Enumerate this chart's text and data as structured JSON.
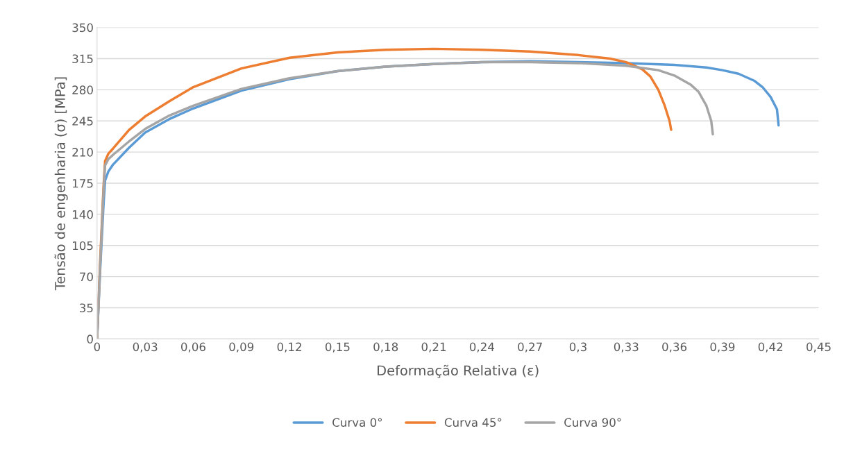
{
  "chart_data": {
    "type": "line",
    "xlabel": "Deformação Relativa (ε)",
    "ylabel": "Tensão de engenharia (σ) [MPa]",
    "xlim": [
      0,
      0.45
    ],
    "xticks": [
      0,
      {
        "value": 0.03,
        "label": "0,03"
      },
      {
        "value": 0.06,
        "label": "0,06"
      },
      {
        "value": 0.09,
        "label": "0,09"
      },
      {
        "value": 0.12,
        "label": "0,12"
      },
      {
        "value": 0.15,
        "label": "0,15"
      },
      {
        "value": 0.18,
        "label": "0,18"
      },
      {
        "value": 0.21,
        "label": "0,21"
      },
      {
        "value": 0.24,
        "label": "0,24"
      },
      {
        "value": 0.27,
        "label": "0,27"
      },
      {
        "value": 0.3,
        "label": "0,3"
      },
      {
        "value": 0.33,
        "label": "0,33"
      },
      {
        "value": 0.36,
        "label": "0,36"
      },
      {
        "value": 0.39,
        "label": "0,39"
      },
      {
        "value": 0.42,
        "label": "0,42"
      },
      {
        "value": 0.45,
        "label": "0,45"
      }
    ],
    "ylim": [
      0,
      350
    ],
    "yticks": [
      0,
      35,
      70,
      105,
      140,
      175,
      210,
      245,
      280,
      315,
      350
    ],
    "grid": "y",
    "legend": "bottom",
    "marker": "none",
    "line_style": "solid",
    "series": [
      {
        "name": "Curva 0°",
        "color": "#5b9bd5",
        "x": [
          0,
          0.002,
          0.004,
          0.005,
          0.007,
          0.01,
          0.02,
          0.03,
          0.045,
          0.06,
          0.09,
          0.12,
          0.15,
          0.18,
          0.21,
          0.24,
          0.27,
          0.3,
          0.33,
          0.36,
          0.38,
          0.39,
          0.4,
          0.41,
          0.415,
          0.42,
          0.424,
          0.425
        ],
        "values": [
          0,
          80,
          150,
          178,
          188,
          196,
          215,
          232,
          247,
          259,
          279,
          292,
          301,
          306,
          309,
          311,
          312,
          311,
          310,
          308,
          305,
          302,
          298,
          290,
          283,
          272,
          258,
          240
        ]
      },
      {
        "name": "Curva 45°",
        "color": "#ed7d31",
        "x": [
          0,
          0.002,
          0.004,
          0.005,
          0.007,
          0.01,
          0.02,
          0.03,
          0.045,
          0.06,
          0.09,
          0.12,
          0.15,
          0.18,
          0.21,
          0.24,
          0.27,
          0.3,
          0.32,
          0.33,
          0.34,
          0.345,
          0.35,
          0.354,
          0.357,
          0.358
        ],
        "values": [
          0,
          90,
          170,
          200,
          208,
          214,
          235,
          250,
          267,
          283,
          304,
          316,
          322,
          325,
          326,
          325,
          323,
          319,
          315,
          311,
          303,
          295,
          280,
          262,
          245,
          235
        ]
      },
      {
        "name": "Curva 90°",
        "color": "#a5a5a5",
        "x": [
          0,
          0.002,
          0.004,
          0.005,
          0.007,
          0.01,
          0.02,
          0.03,
          0.045,
          0.06,
          0.09,
          0.12,
          0.15,
          0.18,
          0.21,
          0.24,
          0.27,
          0.3,
          0.33,
          0.35,
          0.36,
          0.37,
          0.375,
          0.38,
          0.383,
          0.384
        ],
        "values": [
          0,
          85,
          165,
          195,
          202,
          207,
          222,
          236,
          251,
          262,
          281,
          293,
          301,
          306,
          309,
          311,
          311,
          310,
          307,
          302,
          296,
          286,
          278,
          262,
          245,
          230
        ]
      }
    ]
  }
}
